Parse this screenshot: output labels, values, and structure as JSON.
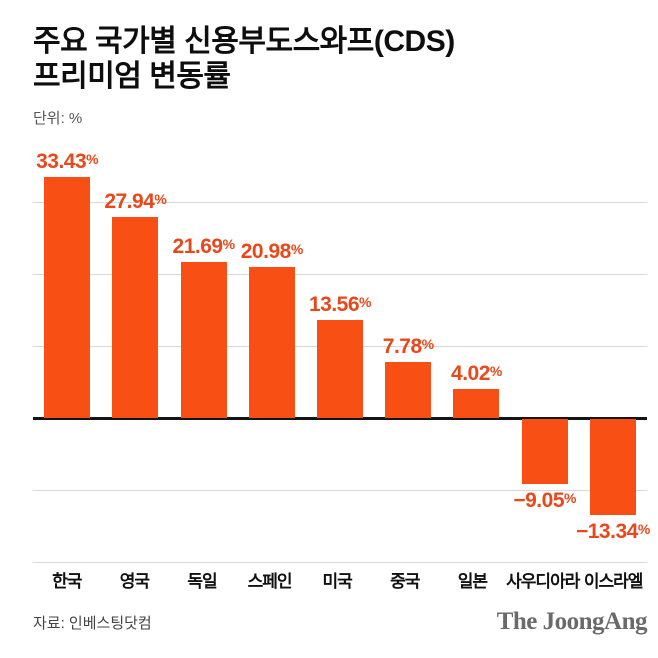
{
  "title": {
    "line1": "주요 국가별 신용부도스와프(CDS)",
    "line2": "프리미엄 변동률"
  },
  "unit_label": "단위: %",
  "source": "자료: 인베스팅닷컴",
  "logo": "The JoongAng",
  "colors": {
    "bar": "#F85014",
    "value_label": "#E8481A",
    "grid": "#D8D8D8",
    "zero_line": "#141414",
    "title": "#0E0E0E",
    "unit": "#555555",
    "category": "#111111",
    "source": "#444444",
    "logo": "#6A6A6A",
    "background": "#FFFFFF"
  },
  "chart_data": {
    "type": "bar",
    "title": "주요 국가별 신용부도스와프(CDS) 프리미엄 변동률",
    "unit": "%",
    "categories": [
      "한국",
      "영국",
      "독일",
      "스페인",
      "미국",
      "중국",
      "일본",
      "사우디아라",
      "이스라엘"
    ],
    "values": [
      33.43,
      27.94,
      21.69,
      20.98,
      13.56,
      7.78,
      4.02,
      -9.05,
      -13.34
    ],
    "value_labels": [
      "33.43%",
      "27.94%",
      "21.69%",
      "20.98%",
      "13.56%",
      "7.78%",
      "4.02%",
      "−9.05%",
      "−13.34%"
    ],
    "ylim": [
      -20,
      40
    ],
    "gridlines": [
      30,
      20,
      10,
      -10,
      -20
    ],
    "zero_baseline": true,
    "grid_on": true,
    "legend": "none",
    "xlabel": "",
    "ylabel": ""
  }
}
